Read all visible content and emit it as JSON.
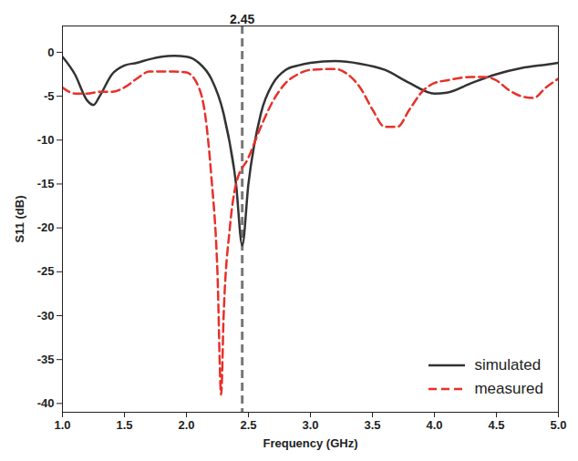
{
  "chart_data": {
    "type": "line",
    "x_label": "Frequency (GHz)",
    "y_label": "S11 (dB)",
    "xlim": [
      1.0,
      5.0
    ],
    "xticks": [
      {
        "value": 1,
        "label": "1.0"
      },
      {
        "value": 1.5,
        "label": "1.5"
      },
      {
        "value": 2,
        "label": "2.0"
      },
      {
        "value": 2.5,
        "label": "2.5"
      },
      {
        "value": 3,
        "label": "3.0"
      },
      {
        "value": 3.5,
        "label": "3.5"
      },
      {
        "value": 4,
        "label": "4.0"
      },
      {
        "value": 4.5,
        "label": "4.5"
      },
      {
        "value": 5,
        "label": "5.0"
      }
    ],
    "ylim": [
      -41,
      3
    ],
    "yticks": [
      0,
      -5,
      -10,
      -15,
      -20,
      -25,
      -30,
      -35,
      -40
    ],
    "grid": false,
    "legend": "lower right",
    "annotations": [
      {
        "type": "vline",
        "x": 2.45,
        "label": "2.45",
        "color": "#777777",
        "line_style": "dashed"
      }
    ],
    "series": [
      {
        "name": "simulated",
        "color": "#333333",
        "line_style": "solid",
        "x": [
          1.0,
          1.1,
          1.2,
          1.25,
          1.3,
          1.4,
          1.5,
          1.6,
          1.7,
          1.8,
          1.9,
          2.0,
          2.1,
          2.2,
          2.3,
          2.4,
          2.45,
          2.5,
          2.6,
          2.7,
          2.8,
          2.9,
          3.0,
          3.2,
          3.4,
          3.6,
          3.8,
          4.0,
          4.1,
          4.3,
          4.5,
          4.7,
          4.9,
          5.0
        ],
        "values": [
          -0.5,
          -2.5,
          -5.5,
          -6,
          -5,
          -2.5,
          -1.5,
          -1.2,
          -0.8,
          -0.5,
          -0.4,
          -0.5,
          -1.2,
          -3,
          -7,
          -15,
          -22,
          -15,
          -7,
          -3.5,
          -2,
          -1.5,
          -1.2,
          -1,
          -1.3,
          -2,
          -3.5,
          -4.7,
          -4.6,
          -3.5,
          -2.5,
          -1.8,
          -1.4,
          -1.2
        ]
      },
      {
        "name": "measured",
        "color": "#e8302a",
        "line_style": "dashed",
        "x": [
          1.0,
          1.1,
          1.2,
          1.3,
          1.4,
          1.5,
          1.6,
          1.7,
          1.8,
          1.9,
          2.0,
          2.1,
          2.15,
          2.2,
          2.25,
          2.28,
          2.3,
          2.35,
          2.4,
          2.5,
          2.6,
          2.7,
          2.8,
          2.9,
          3.0,
          3.2,
          3.3,
          3.4,
          3.5,
          3.6,
          3.7,
          3.8,
          3.9,
          4.0,
          4.1,
          4.3,
          4.4,
          4.5,
          4.6,
          4.7,
          4.8,
          4.9,
          5.0
        ],
        "values": [
          -4,
          -4.7,
          -4.7,
          -4.5,
          -4.5,
          -4,
          -3,
          -2.2,
          -2.2,
          -2.2,
          -2.3,
          -4,
          -7,
          -14,
          -25,
          -39,
          -30,
          -20,
          -15,
          -12,
          -8.5,
          -5.5,
          -3.5,
          -2.5,
          -2,
          -1.9,
          -2.5,
          -4,
          -6.5,
          -8.5,
          -8.5,
          -6.5,
          -4.5,
          -3.5,
          -3.2,
          -2.8,
          -2.8,
          -3.2,
          -4.3,
          -5,
          -5.2,
          -4,
          -3
        ]
      }
    ]
  }
}
